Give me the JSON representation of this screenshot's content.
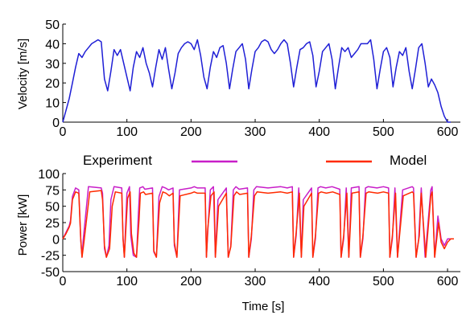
{
  "chart_data": [
    {
      "type": "line",
      "ylabel": "Velocity [m/s]",
      "xlabel": "",
      "xlim": [
        0,
        620
      ],
      "ylim": [
        0,
        50
      ],
      "xticks": [
        0,
        100,
        200,
        300,
        400,
        500,
        600
      ],
      "yticks": [
        0,
        10,
        20,
        30,
        40,
        50
      ],
      "grid": false,
      "colors": {
        "series": "#1f1fd6"
      },
      "series": [
        {
          "x": [
            0,
            5,
            10,
            15,
            20,
            25,
            30,
            35,
            40,
            45,
            50,
            55,
            60,
            65,
            70,
            75,
            80,
            85,
            90,
            95,
            100,
            105,
            110,
            115,
            120,
            125,
            130,
            135,
            140,
            145,
            150,
            155,
            160,
            165,
            170,
            175,
            180,
            185,
            190,
            195,
            200,
            205,
            210,
            215,
            220,
            225,
            230,
            235,
            240,
            245,
            250,
            255,
            260,
            265,
            270,
            275,
            280,
            285,
            290,
            295,
            300,
            305,
            310,
            315,
            320,
            325,
            330,
            335,
            340,
            345,
            350,
            355,
            360,
            365,
            370,
            375,
            380,
            385,
            390,
            395,
            400,
            405,
            410,
            415,
            420,
            425,
            430,
            435,
            440,
            445,
            450,
            455,
            460,
            465,
            470,
            475,
            480,
            485,
            490,
            495,
            500,
            505,
            510,
            515,
            520,
            525,
            530,
            535,
            540,
            545,
            550,
            555,
            560,
            565,
            570,
            575,
            580,
            585,
            590,
            595,
            600,
            605
          ],
          "y": [
            0,
            6,
            12,
            20,
            28,
            35,
            33,
            36,
            38,
            40,
            41,
            42,
            41,
            22,
            16,
            26,
            37,
            34,
            37,
            30,
            23,
            16,
            28,
            36,
            33,
            38,
            30,
            25,
            18,
            28,
            37,
            32,
            38,
            27,
            17,
            25,
            35,
            38,
            40,
            41,
            40,
            37,
            42,
            34,
            23,
            17,
            28,
            36,
            33,
            38,
            39,
            30,
            17,
            27,
            36,
            38,
            40,
            32,
            17,
            27,
            36,
            38,
            41,
            42,
            41,
            37,
            35,
            37,
            40,
            42,
            40,
            30,
            18,
            28,
            37,
            38,
            40,
            41,
            34,
            18,
            26,
            36,
            38,
            40,
            32,
            17,
            28,
            38,
            36,
            38,
            33,
            35,
            37,
            40,
            40,
            40,
            42,
            32,
            17,
            27,
            36,
            38,
            33,
            18,
            28,
            36,
            34,
            38,
            26,
            17,
            27,
            38,
            40,
            30,
            18,
            22,
            19,
            15,
            8,
            3,
            0,
            0
          ]
        }
      ]
    },
    {
      "type": "line",
      "ylabel": "Power [kW]",
      "xlabel": "Time [s]",
      "xlim": [
        0,
        620
      ],
      "ylim": [
        -50,
        100
      ],
      "xticks": [
        0,
        100,
        200,
        300,
        400,
        500,
        600
      ],
      "yticks": [
        -50,
        -25,
        0,
        25,
        50,
        75,
        100
      ],
      "grid": false,
      "legend": {
        "placement": "top"
      },
      "series": [
        {
          "name": "Experiment",
          "color": "#c81ec8",
          "x": [
            0,
            5,
            10,
            12,
            15,
            20,
            25,
            28,
            30,
            32,
            40,
            60,
            62,
            65,
            68,
            72,
            75,
            80,
            92,
            94,
            96,
            100,
            104,
            106,
            110,
            115,
            118,
            120,
            125,
            128,
            140,
            142,
            146,
            150,
            155,
            160,
            165,
            172,
            174,
            178,
            182,
            200,
            205,
            210,
            222,
            224,
            226,
            230,
            235,
            238,
            242,
            255,
            258,
            262,
            266,
            270,
            275,
            288,
            290,
            294,
            298,
            302,
            320,
            340,
            350,
            358,
            360,
            364,
            368,
            372,
            375,
            388,
            390,
            394,
            398,
            402,
            410,
            420,
            432,
            434,
            438,
            442,
            446,
            450,
            462,
            464,
            468,
            472,
            476,
            490,
            500,
            508,
            510,
            514,
            518,
            522,
            530,
            545,
            547,
            551,
            555,
            559,
            565,
            574,
            576,
            580,
            585,
            590,
            595,
            600,
            605,
            610
          ],
          "y": [
            0,
            10,
            20,
            28,
            65,
            78,
            75,
            0,
            -28,
            0,
            80,
            78,
            70,
            -15,
            -28,
            -10,
            60,
            80,
            78,
            0,
            -28,
            70,
            80,
            5,
            -25,
            -28,
            40,
            78,
            80,
            76,
            78,
            -20,
            -28,
            65,
            80,
            78,
            75,
            78,
            -10,
            -28,
            75,
            78,
            80,
            78,
            78,
            -28,
            10,
            75,
            80,
            -28,
            60,
            78,
            -28,
            -10,
            75,
            80,
            76,
            78,
            -28,
            0,
            75,
            80,
            78,
            80,
            78,
            80,
            -28,
            5,
            78,
            -28,
            60,
            78,
            -28,
            0,
            78,
            80,
            78,
            80,
            76,
            -28,
            0,
            78,
            -28,
            78,
            80,
            -28,
            0,
            78,
            80,
            78,
            80,
            78,
            -28,
            0,
            78,
            -28,
            75,
            80,
            78,
            -28,
            0,
            78,
            -28,
            75,
            80,
            -28,
            35,
            0,
            -10,
            0,
            0,
            0
          ]
        },
        {
          "name": "Model",
          "color": "#ff2a00",
          "x": [
            0,
            5,
            10,
            12,
            15,
            20,
            25,
            28,
            30,
            33,
            42,
            60,
            62,
            65,
            68,
            73,
            77,
            82,
            92,
            94,
            96,
            101,
            105,
            107,
            111,
            115,
            119,
            121,
            126,
            129,
            140,
            142,
            146,
            151,
            156,
            161,
            166,
            172,
            174,
            178,
            183,
            200,
            205,
            210,
            222,
            224,
            226,
            231,
            236,
            238,
            243,
            255,
            258,
            262,
            267,
            271,
            276,
            288,
            290,
            294,
            299,
            303,
            320,
            340,
            350,
            358,
            360,
            364,
            369,
            372,
            376,
            388,
            390,
            394,
            399,
            403,
            411,
            421,
            432,
            434,
            438,
            443,
            446,
            451,
            462,
            464,
            468,
            473,
            477,
            491,
            500,
            508,
            510,
            514,
            519,
            522,
            531,
            545,
            547,
            551,
            556,
            559,
            566,
            574,
            576,
            580,
            586,
            590,
            595,
            600,
            605,
            610
          ],
          "y": [
            0,
            8,
            18,
            24,
            60,
            72,
            70,
            0,
            -28,
            -5,
            72,
            74,
            60,
            -10,
            -28,
            -15,
            50,
            72,
            70,
            0,
            -28,
            62,
            72,
            8,
            -22,
            -28,
            30,
            70,
            72,
            68,
            70,
            -18,
            -28,
            55,
            72,
            70,
            66,
            70,
            -5,
            -28,
            66,
            70,
            72,
            70,
            70,
            -28,
            15,
            66,
            72,
            -28,
            50,
            70,
            -28,
            -12,
            66,
            72,
            68,
            70,
            -28,
            5,
            66,
            72,
            70,
            72,
            70,
            72,
            -28,
            10,
            70,
            -28,
            50,
            70,
            -28,
            5,
            70,
            72,
            70,
            72,
            68,
            -28,
            5,
            70,
            -28,
            70,
            72,
            -28,
            5,
            70,
            72,
            70,
            72,
            70,
            -28,
            5,
            70,
            -28,
            66,
            72,
            70,
            -28,
            5,
            70,
            -28,
            66,
            72,
            -28,
            25,
            -5,
            -15,
            -5,
            0,
            0
          ]
        }
      ]
    }
  ]
}
